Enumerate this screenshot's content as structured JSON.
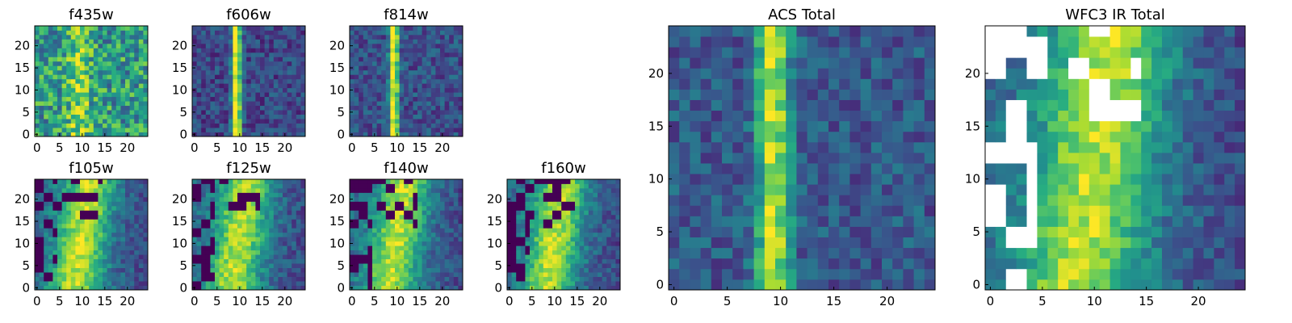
{
  "figure": {
    "background": "#ffffff",
    "colormap": "viridis",
    "mask_color": "#ffffff"
  },
  "chart_data": [
    {
      "type": "heatmap",
      "title": "f435w",
      "xticks": [
        "0",
        "5",
        "10",
        "15",
        "20"
      ],
      "yticks": [
        "0",
        "5",
        "10",
        "15",
        "20"
      ],
      "xlim": [
        -0.5,
        24.5
      ],
      "ylim": [
        -0.5,
        24.5
      ],
      "grid": false
    },
    {
      "type": "heatmap",
      "title": "f606w",
      "xticks": [
        "0",
        "5",
        "10",
        "15",
        "20"
      ],
      "yticks": [
        "0",
        "5",
        "10",
        "15",
        "20"
      ],
      "xlim": [
        -0.5,
        24.5
      ],
      "ylim": [
        -0.5,
        24.5
      ],
      "grid": false
    },
    {
      "type": "heatmap",
      "title": "f814w",
      "xticks": [
        "0",
        "5",
        "10",
        "15",
        "20"
      ],
      "yticks": [
        "0",
        "5",
        "10",
        "15",
        "20"
      ],
      "xlim": [
        -0.5,
        24.5
      ],
      "ylim": [
        -0.5,
        24.5
      ],
      "grid": false
    },
    {
      "type": "heatmap",
      "title": "f105w",
      "xticks": [
        "0",
        "5",
        "10",
        "15",
        "20"
      ],
      "yticks": [
        "0",
        "5",
        "10",
        "15",
        "20"
      ],
      "xlim": [
        -0.5,
        24.5
      ],
      "ylim": [
        -0.5,
        24.5
      ],
      "grid": false
    },
    {
      "type": "heatmap",
      "title": "f125w",
      "xticks": [
        "0",
        "5",
        "10",
        "15",
        "20"
      ],
      "yticks": [
        "0",
        "5",
        "10",
        "15",
        "20"
      ],
      "xlim": [
        -0.5,
        24.5
      ],
      "ylim": [
        -0.5,
        24.5
      ],
      "grid": false
    },
    {
      "type": "heatmap",
      "title": "f140w",
      "xticks": [
        "0",
        "5",
        "10",
        "15",
        "20"
      ],
      "yticks": [
        "0",
        "5",
        "10",
        "15",
        "20"
      ],
      "xlim": [
        -0.5,
        24.5
      ],
      "ylim": [
        -0.5,
        24.5
      ],
      "grid": false
    },
    {
      "type": "heatmap",
      "title": "f160w",
      "xticks": [
        "0",
        "5",
        "10",
        "15",
        "20"
      ],
      "yticks": [
        "0",
        "5",
        "10",
        "15",
        "20"
      ],
      "xlim": [
        -0.5,
        24.5
      ],
      "ylim": [
        -0.5,
        24.5
      ],
      "grid": false
    },
    {
      "type": "heatmap",
      "title": "ACS Total",
      "xticks": [
        "0",
        "5",
        "10",
        "15",
        "20"
      ],
      "yticks": [
        "0",
        "5",
        "10",
        "15",
        "20"
      ],
      "xlim": [
        -0.5,
        24.5
      ],
      "ylim": [
        -0.5,
        24.5
      ],
      "grid": false
    },
    {
      "type": "heatmap",
      "title": "WFC3 IR Total",
      "xticks": [
        "0",
        "5",
        "10",
        "15",
        "20"
      ],
      "yticks": [
        "0",
        "5",
        "10",
        "15",
        "20"
      ],
      "xlim": [
        -0.5,
        24.5
      ],
      "ylim": [
        -0.5,
        24.5
      ],
      "grid": false
    }
  ]
}
